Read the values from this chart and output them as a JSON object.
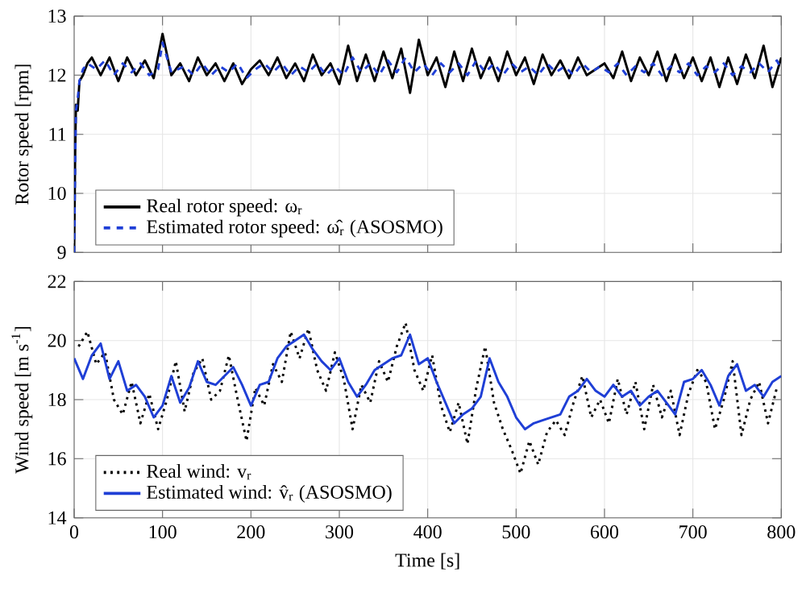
{
  "chart_data": [
    {
      "type": "line",
      "ylabel": "Rotor speed [rpm]",
      "xlim": [
        0,
        800
      ],
      "ylim": [
        9,
        13
      ],
      "xticks": [
        0,
        100,
        200,
        300,
        400,
        500,
        600,
        700,
        800
      ],
      "yticks": [
        9,
        10,
        11,
        12,
        13
      ],
      "tick_labels": "y",
      "grid": true,
      "legend": "bottom left",
      "series": [
        {
          "name": "Real rotor speed: ω$_{r}$",
          "color": "#000000",
          "line_style": "solid",
          "x": [
            0,
            1,
            2,
            4,
            6,
            10,
            15,
            20,
            30,
            40,
            50,
            60,
            70,
            80,
            90,
            100,
            110,
            120,
            130,
            140,
            150,
            160,
            170,
            180,
            190,
            200,
            210,
            220,
            230,
            240,
            250,
            260,
            270,
            280,
            290,
            300,
            310,
            320,
            330,
            340,
            350,
            360,
            370,
            380,
            390,
            400,
            410,
            420,
            430,
            440,
            450,
            460,
            470,
            480,
            490,
            500,
            510,
            520,
            530,
            540,
            550,
            560,
            570,
            580,
            590,
            600,
            610,
            620,
            630,
            640,
            650,
            660,
            670,
            680,
            690,
            700,
            710,
            720,
            730,
            740,
            750,
            760,
            770,
            780,
            790,
            800
          ],
          "values": [
            9.0,
            10.5,
            11.5,
            11.4,
            11.9,
            12.0,
            12.2,
            12.3,
            12.0,
            12.3,
            11.9,
            12.3,
            12.0,
            12.25,
            11.95,
            12.7,
            12.0,
            12.2,
            11.9,
            12.3,
            12.0,
            12.2,
            11.9,
            12.2,
            11.85,
            12.1,
            12.25,
            12.0,
            12.3,
            11.95,
            12.2,
            11.9,
            12.35,
            12.0,
            12.2,
            11.85,
            12.5,
            11.9,
            12.35,
            11.9,
            12.4,
            11.95,
            12.45,
            11.7,
            12.6,
            12.0,
            12.3,
            11.8,
            12.4,
            11.9,
            12.45,
            11.95,
            12.3,
            11.9,
            12.4,
            12.0,
            12.3,
            11.85,
            12.35,
            12.0,
            12.25,
            11.95,
            12.3,
            12.0,
            12.1,
            12.2,
            11.95,
            12.4,
            11.9,
            12.3,
            12.0,
            12.4,
            11.9,
            12.35,
            11.95,
            12.3,
            11.9,
            12.3,
            11.8,
            12.3,
            11.85,
            12.35,
            11.95,
            12.5,
            11.8,
            12.3
          ]
        },
        {
          "name": "Estimated rotor speed: ω̂$_{r}$ (ASOSMO)",
          "color": "#1f3fd6",
          "line_style": "dashed",
          "x": [
            0,
            1,
            2,
            4,
            6,
            10,
            15,
            25,
            35,
            45,
            55,
            65,
            75,
            85,
            95,
            100,
            110,
            125,
            135,
            145,
            155,
            165,
            175,
            185,
            195,
            205,
            215,
            225,
            235,
            245,
            255,
            265,
            275,
            285,
            295,
            305,
            315,
            325,
            335,
            345,
            355,
            365,
            375,
            385,
            395,
            405,
            415,
            425,
            435,
            445,
            455,
            465,
            475,
            485,
            495,
            505,
            515,
            525,
            535,
            545,
            555,
            565,
            575,
            585,
            595,
            605,
            615,
            625,
            635,
            645,
            655,
            665,
            675,
            685,
            695,
            705,
            715,
            725,
            735,
            745,
            755,
            765,
            775,
            785,
            795,
            800
          ],
          "values": [
            9.0,
            10.3,
            11.4,
            11.6,
            11.9,
            12.1,
            12.2,
            12.1,
            12.25,
            12.0,
            12.2,
            12.05,
            12.2,
            12.0,
            12.1,
            12.55,
            12.05,
            12.15,
            12.0,
            12.2,
            12.0,
            12.15,
            12.05,
            12.2,
            11.95,
            12.1,
            12.2,
            12.05,
            12.2,
            12.0,
            12.15,
            12.05,
            12.2,
            12.0,
            12.15,
            12.0,
            12.3,
            12.05,
            12.2,
            12.0,
            12.25,
            12.05,
            12.3,
            12.05,
            12.2,
            12.0,
            12.2,
            12.05,
            12.2,
            12.0,
            12.25,
            12.05,
            12.2,
            12.0,
            12.2,
            12.05,
            12.15,
            12.0,
            12.2,
            12.05,
            12.15,
            12.0,
            12.2,
            12.05,
            12.15,
            12.05,
            12.2,
            12.0,
            12.15,
            12.05,
            12.2,
            12.0,
            12.15,
            12.05,
            12.2,
            12.0,
            12.15,
            12.05,
            12.2,
            12.0,
            12.15,
            12.05,
            12.2,
            12.05,
            12.25,
            12.1
          ]
        }
      ]
    },
    {
      "type": "line",
      "xlabel": "Time [s]",
      "ylabel": "Wind speed [m s$^{-1}$]",
      "xlim": [
        0,
        800
      ],
      "ylim": [
        14,
        22
      ],
      "xticks": [
        0,
        100,
        200,
        300,
        400,
        500,
        600,
        700,
        800
      ],
      "yticks": [
        14,
        16,
        18,
        20,
        22
      ],
      "grid": true,
      "legend": "bottom left",
      "series": [
        {
          "name": "Real wind: v$_{r}$",
          "color": "#000000",
          "line_style": "dotted",
          "x": [
            5,
            15,
            25,
            35,
            45,
            55,
            65,
            75,
            85,
            95,
            105,
            115,
            125,
            135,
            145,
            155,
            165,
            175,
            185,
            195,
            205,
            215,
            225,
            235,
            245,
            255,
            265,
            275,
            285,
            295,
            305,
            315,
            325,
            335,
            345,
            355,
            365,
            375,
            385,
            395,
            405,
            415,
            425,
            435,
            445,
            455,
            465,
            475,
            485,
            495,
            505,
            515,
            525,
            535,
            545,
            555,
            565,
            575,
            585,
            595,
            605,
            615,
            625,
            635,
            645,
            655,
            665,
            675,
            685,
            695,
            705,
            715,
            725,
            735,
            745,
            755,
            765,
            775,
            785,
            795
          ],
          "values": [
            19.8,
            20.3,
            19.2,
            19.6,
            18.0,
            17.5,
            18.6,
            17.2,
            18.2,
            17.0,
            18.0,
            19.3,
            17.6,
            18.9,
            19.4,
            18.0,
            18.3,
            19.5,
            18.0,
            16.6,
            18.4,
            17.8,
            19.2,
            18.6,
            20.3,
            19.4,
            20.4,
            19.0,
            18.3,
            19.6,
            18.7,
            17.0,
            18.5,
            17.9,
            19.3,
            18.6,
            19.8,
            20.6,
            19.0,
            18.3,
            19.5,
            17.8,
            16.9,
            17.9,
            16.5,
            18.4,
            19.8,
            17.9,
            17.0,
            16.3,
            15.5,
            16.6,
            15.8,
            16.9,
            17.3,
            16.8,
            17.9,
            18.8,
            17.4,
            18.0,
            17.2,
            18.7,
            17.5,
            18.6,
            17.0,
            18.5,
            17.4,
            18.3,
            16.8,
            18.2,
            19.0,
            18.6,
            17.0,
            18.0,
            19.3,
            16.8,
            18.0,
            18.6,
            17.2,
            18.4
          ]
        },
        {
          "name": "Estimated wind: v̂$_{r}$ (ASOSMO)",
          "color": "#1f3fd6",
          "line_style": "solid",
          "x": [
            0,
            10,
            20,
            30,
            40,
            50,
            60,
            70,
            80,
            90,
            100,
            110,
            120,
            130,
            140,
            150,
            160,
            170,
            180,
            190,
            200,
            210,
            220,
            230,
            240,
            250,
            260,
            270,
            280,
            290,
            300,
            310,
            320,
            330,
            340,
            350,
            360,
            370,
            380,
            390,
            400,
            410,
            420,
            430,
            440,
            450,
            460,
            470,
            480,
            490,
            500,
            510,
            520,
            530,
            540,
            550,
            560,
            570,
            580,
            590,
            600,
            610,
            620,
            630,
            640,
            650,
            660,
            670,
            680,
            690,
            700,
            710,
            720,
            730,
            740,
            750,
            760,
            770,
            780,
            790,
            800
          ],
          "values": [
            19.4,
            18.7,
            19.5,
            19.9,
            18.7,
            19.3,
            18.3,
            18.5,
            18.1,
            17.4,
            17.8,
            18.8,
            17.9,
            18.4,
            19.3,
            18.6,
            18.5,
            18.8,
            19.1,
            18.5,
            17.8,
            18.5,
            18.6,
            19.4,
            19.8,
            20.0,
            20.2,
            19.7,
            19.3,
            19.0,
            19.4,
            18.6,
            18.1,
            18.5,
            19.0,
            19.2,
            19.4,
            19.5,
            20.2,
            19.2,
            19.4,
            18.6,
            17.9,
            17.2,
            17.5,
            17.7,
            18.1,
            19.4,
            18.6,
            18.1,
            17.4,
            17.0,
            17.2,
            17.3,
            17.4,
            17.5,
            18.1,
            18.3,
            18.7,
            18.3,
            18.1,
            18.5,
            18.1,
            18.3,
            17.8,
            18.1,
            18.3,
            17.9,
            17.5,
            18.6,
            18.7,
            19.0,
            18.5,
            17.8,
            18.8,
            19.2,
            18.3,
            18.5,
            18.1,
            18.6,
            18.8
          ]
        }
      ]
    }
  ]
}
